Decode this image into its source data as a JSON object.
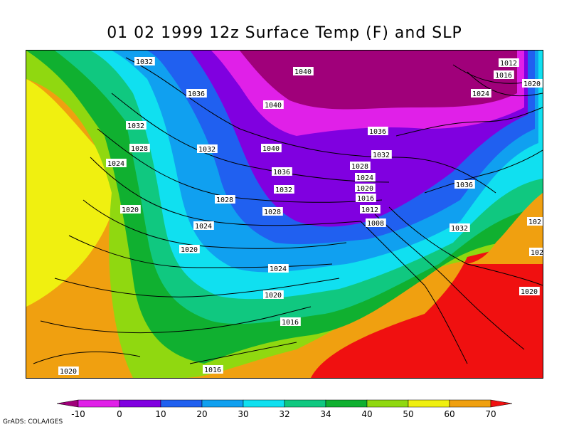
{
  "title": "01 02 1999 12z Surface Temp (F) and SLP",
  "footer": "GrADS: COLA/IGES",
  "map": {
    "isobar_labels": [
      {
        "text": "1032",
        "id": "isobar-1032-nw"
      },
      {
        "text": "1036",
        "id": "isobar-1036-alberta"
      },
      {
        "text": "1040",
        "id": "isobar-1040-north"
      },
      {
        "text": "1040",
        "id": "isobar-1040-hudson"
      },
      {
        "text": "1032",
        "id": "isobar-1032-bc"
      },
      {
        "text": "1028",
        "id": "isobar-1028-wa"
      },
      {
        "text": "1024",
        "id": "isobar-1024-coast"
      },
      {
        "text": "1032",
        "id": "isobar-1032-mt"
      },
      {
        "text": "1040",
        "id": "isobar-1040-plains"
      },
      {
        "text": "1036",
        "id": "isobar-1036-dakota"
      },
      {
        "text": "1032",
        "id": "isobar-1032-ne"
      },
      {
        "text": "1028",
        "id": "isobar-1028-ut"
      },
      {
        "text": "1028",
        "id": "isobar-1028-ks"
      },
      {
        "text": "1020",
        "id": "isobar-1020-ca"
      },
      {
        "text": "1024",
        "id": "isobar-1024-nv"
      },
      {
        "text": "1020",
        "id": "isobar-1020-az"
      },
      {
        "text": "1024",
        "id": "isobar-1024-tx"
      },
      {
        "text": "1020",
        "id": "isobar-1020-tx2"
      },
      {
        "text": "1016",
        "id": "isobar-1016-gulf"
      },
      {
        "text": "1020",
        "id": "isobar-1020-pacific"
      },
      {
        "text": "1016",
        "id": "isobar-1016-mexico"
      },
      {
        "text": "1036",
        "id": "isobar-1036-ontario"
      },
      {
        "text": "1032",
        "id": "isobar-1032-greatlakes"
      },
      {
        "text": "1028",
        "id": "isobar-1028-wi"
      },
      {
        "text": "1024",
        "id": "isobar-1024-il"
      },
      {
        "text": "1020",
        "id": "isobar-1020-in"
      },
      {
        "text": "1016",
        "id": "isobar-1016-ky"
      },
      {
        "text": "1012",
        "id": "isobar-1012-tn"
      },
      {
        "text": "1008",
        "id": "isobar-1008-low"
      },
      {
        "text": "1036",
        "id": "isobar-1036-ny"
      },
      {
        "text": "1032",
        "id": "isobar-1032-va"
      },
      {
        "text": "1012",
        "id": "isobar-1012-ne-corner"
      },
      {
        "text": "1016",
        "id": "isobar-1016-ne-corner"
      },
      {
        "text": "1020",
        "id": "isobar-1020-ne-corner"
      },
      {
        "text": "1024",
        "id": "isobar-1024-quebec"
      },
      {
        "text": "102",
        "id": "isobar-102-atl1"
      },
      {
        "text": "102",
        "id": "isobar-102-atl2"
      },
      {
        "text": "1020",
        "id": "isobar-1020-atl3"
      }
    ]
  },
  "colorbar": {
    "ticks": [
      "-10",
      "0",
      "10",
      "20",
      "30",
      "32",
      "34",
      "40",
      "50",
      "60",
      "70"
    ],
    "colors": [
      "#a0007a",
      "#e020e8",
      "#8000e0",
      "#2060f0",
      "#10a0f0",
      "#10e0f0",
      "#10c880",
      "#10b030",
      "#90d810",
      "#f0f010",
      "#f0a010",
      "#f01010"
    ]
  }
}
